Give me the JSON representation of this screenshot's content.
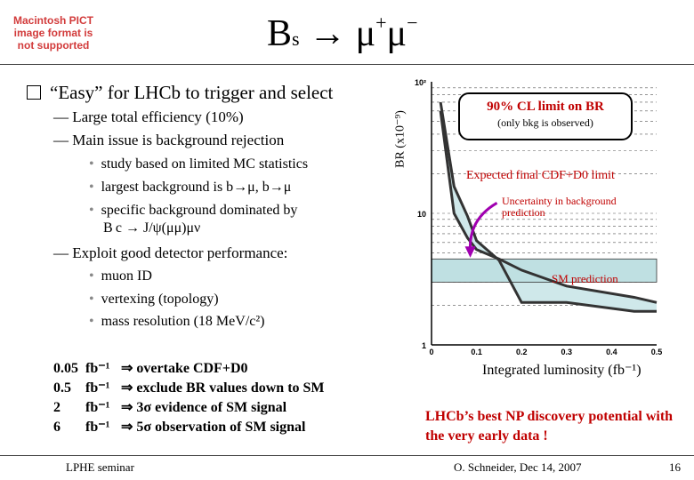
{
  "placeholder": {
    "text": "Macintosh PICT image format is not supported"
  },
  "title": {
    "base": "B",
    "sub": "s",
    "arrow": "→ μ",
    "sup1": "+",
    "mu2": "μ",
    "sup2": "−"
  },
  "main_bullet": "“Easy” for LHCb to trigger and select",
  "dash1": "— Large total efficiency (10%)",
  "dash2": "— Main issue is background rejection",
  "sub_bullets1": [
    "study based on limited MC statistics",
    "largest background is b→μ, b→μ",
    "specific background dominated by",
    "B c → J/ψ(μμ)μν"
  ],
  "dash3": "— Exploit good detector performance:",
  "sub_bullets2": [
    "muon ID",
    "vertexing (topology)",
    "mass resolution (18 MeV/c²)"
  ],
  "sensitivity": [
    {
      "lumi": "0.05",
      "unit": "fb⁻¹",
      "arrow": "⇒",
      "text": "overtake CDF+D0"
    },
    {
      "lumi": "0.5",
      "unit": "fb⁻¹",
      "arrow": "⇒",
      "text": "exclude BR values down to SM"
    },
    {
      "lumi": "2",
      "unit": "fb⁻¹",
      "arrow": "⇒",
      "text": "3σ evidence of SM signal"
    },
    {
      "lumi": "6",
      "unit": "fb⁻¹",
      "arrow": "⇒",
      "text": "5σ observation of SM signal"
    }
  ],
  "footer": {
    "left": "LPHE seminar",
    "center": "O. Schneider, Dec 14, 2007",
    "page": "16"
  },
  "np_text": "LHCb’s best NP discovery potential with the very early data !",
  "chart_data": {
    "type": "line",
    "y_axis_label": "BR (x10⁻⁹)",
    "x_axis_label": "Integrated luminosity (fb⁻¹)",
    "y_scale": "log",
    "ylim": [
      1,
      100
    ],
    "xlim": [
      0,
      0.5
    ],
    "y_ticks": [
      "10²",
      "10",
      "1"
    ],
    "x_ticks": [
      "0",
      "0.1",
      "0.2",
      "0.3",
      "0.4",
      "0.5"
    ],
    "info_box": {
      "title": "90% CL limit on BR",
      "subtitle": "(only bkg is observed)"
    },
    "annotations": {
      "expected": "Expected final CDF+D0 limit",
      "uncertainty": "Uncertainty in background prediction",
      "sm": "SM prediction"
    },
    "sm_band": [
      3.0,
      4.5
    ],
    "series": [
      {
        "x": [
          0.02,
          0.05,
          0.08,
          0.1,
          0.15,
          0.2,
          0.3,
          0.45,
          0.5
        ],
        "values": [
          60,
          10,
          6.5,
          5.3,
          4.5,
          3.7,
          2.8,
          2.3,
          2.1
        ]
      },
      {
        "x": [
          0.02,
          0.05,
          0.08,
          0.1,
          0.15,
          0.2,
          0.3,
          0.45,
          0.5
        ],
        "values": [
          70,
          16,
          9.5,
          6.2,
          4.4,
          2.1,
          2.1,
          1.8,
          1.8
        ]
      }
    ],
    "colors": {
      "band": "#cfe8ea",
      "line": "#333333",
      "sm": "#d00000",
      "arrow": "#a000b0"
    }
  }
}
